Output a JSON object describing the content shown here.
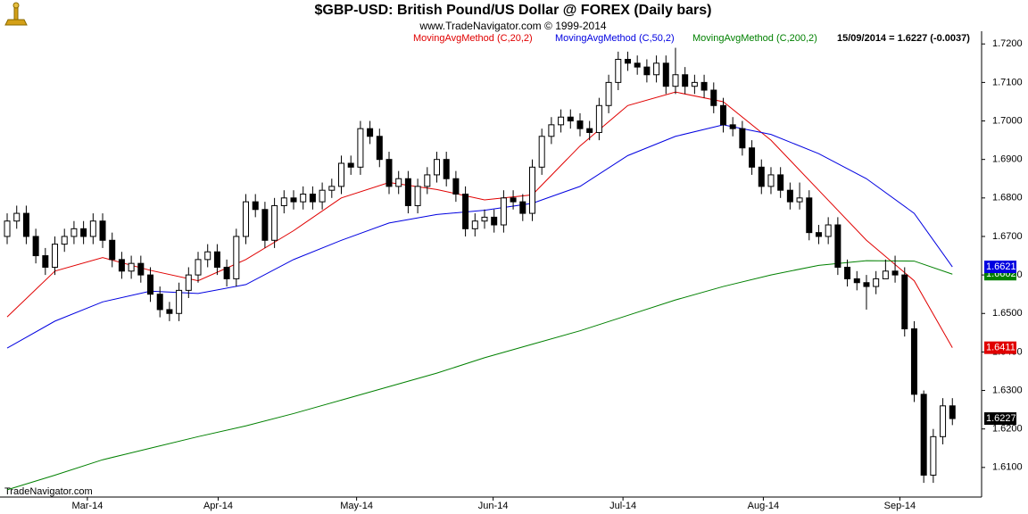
{
  "chart_data": {
    "type": "candlestick",
    "title": "$GBP-USD:  British Pound/US Dollar @ FOREX  (Daily bars)",
    "subtitle": "www.TradeNavigator.com © 1999-2014",
    "last_bar": "15/09/2014 = 1.6227 (-0.0037)",
    "footer": "TradeNavigator.com",
    "up_color": "#ffffff",
    "down_color": "#000000",
    "ylim": [
      1.6044,
      1.7233
    ],
    "yticks": [
      {
        "value": 1.61,
        "label": "1.6100"
      },
      {
        "value": 1.62,
        "label": "1.6200"
      },
      {
        "value": 1.63,
        "label": "1.6300"
      },
      {
        "value": 1.64,
        "label": "1.6400"
      },
      {
        "value": 1.65,
        "label": "1.6500"
      },
      {
        "value": 1.66,
        "label": "1.6600"
      },
      {
        "value": 1.67,
        "label": "1.6700"
      },
      {
        "value": 1.68,
        "label": "1.6800"
      },
      {
        "value": 1.69,
        "label": "1.6900"
      },
      {
        "value": 1.7,
        "label": "1.7000"
      },
      {
        "value": 1.71,
        "label": "1.7100"
      },
      {
        "value": 1.72,
        "label": "1.7200"
      }
    ],
    "xlim": [
      -0.75,
      102.06
    ],
    "xticks": [
      {
        "value": 8.4,
        "label": "Mar-14"
      },
      {
        "value": 22.1,
        "label": "Apr-14"
      },
      {
        "value": 36.6,
        "label": "May-14"
      },
      {
        "value": 50.9,
        "label": "Jun-14"
      },
      {
        "value": 64.5,
        "label": "Jul-14"
      },
      {
        "value": 79.2,
        "label": "Aug-14"
      },
      {
        "value": 93.5,
        "label": "Sep-14"
      }
    ],
    "open": [
      1.67,
      1.674,
      1.676,
      1.67,
      1.665,
      1.662,
      1.668,
      1.67,
      1.672,
      1.67,
      1.674,
      1.669,
      1.664,
      1.661,
      1.663,
      1.66,
      1.655,
      1.651,
      1.65,
      1.656,
      1.66,
      1.664,
      1.666,
      1.662,
      1.659,
      1.67,
      1.679,
      1.677,
      1.669,
      1.678,
      1.68,
      1.679,
      1.681,
      1.679,
      1.682,
      1.683,
      1.689,
      1.688,
      1.698,
      1.696,
      1.69,
      1.683,
      1.685,
      1.678,
      1.683,
      1.686,
      1.69,
      1.685,
      1.681,
      1.672,
      1.674,
      1.675,
      1.673,
      1.68,
      1.679,
      1.676,
      1.688,
      1.696,
      1.699,
      1.701,
      1.7,
      1.698,
      1.697,
      1.704,
      1.71,
      1.716,
      1.715,
      1.714,
      1.712,
      1.715,
      1.709,
      1.712,
      1.709,
      1.71,
      1.708,
      1.704,
      1.699,
      1.698,
      1.693,
      1.688,
      1.683,
      1.686,
      1.682,
      1.679,
      1.68,
      1.671,
      1.67,
      1.673,
      1.662,
      1.659,
      1.658,
      1.657,
      1.659,
      1.661,
      1.66,
      1.646,
      1.629,
      1.608,
      1.618,
      1.626
    ],
    "high": [
      1.676,
      1.678,
      1.678,
      1.672,
      1.667,
      1.67,
      1.672,
      1.674,
      1.674,
      1.676,
      1.676,
      1.671,
      1.666,
      1.665,
      1.665,
      1.662,
      1.657,
      1.653,
      1.658,
      1.662,
      1.666,
      1.668,
      1.668,
      1.664,
      1.672,
      1.681,
      1.681,
      1.679,
      1.68,
      1.682,
      1.682,
      1.683,
      1.683,
      1.684,
      1.685,
      1.691,
      1.691,
      1.7,
      1.7,
      1.698,
      1.692,
      1.687,
      1.687,
      1.685,
      1.688,
      1.692,
      1.692,
      1.687,
      1.683,
      1.676,
      1.677,
      1.677,
      1.682,
      1.682,
      1.681,
      1.69,
      1.698,
      1.701,
      1.703,
      1.703,
      1.702,
      1.7,
      1.706,
      1.712,
      1.718,
      1.718,
      1.717,
      1.716,
      1.717,
      1.717,
      1.719,
      1.714,
      1.712,
      1.712,
      1.71,
      1.706,
      1.701,
      1.7,
      1.695,
      1.69,
      1.688,
      1.688,
      1.684,
      1.684,
      1.682,
      1.673,
      1.675,
      1.675,
      1.664,
      1.661,
      1.66,
      1.661,
      1.664,
      1.665,
      1.662,
      1.648,
      1.63,
      1.62,
      1.628,
      1.628
    ],
    "low": [
      1.668,
      1.672,
      1.668,
      1.663,
      1.66,
      1.66,
      1.666,
      1.668,
      1.668,
      1.668,
      1.667,
      1.662,
      1.659,
      1.659,
      1.658,
      1.653,
      1.649,
      1.648,
      1.648,
      1.654,
      1.658,
      1.662,
      1.66,
      1.657,
      1.657,
      1.668,
      1.675,
      1.667,
      1.667,
      1.676,
      1.677,
      1.677,
      1.677,
      1.677,
      1.68,
      1.681,
      1.686,
      1.686,
      1.694,
      1.688,
      1.681,
      1.681,
      1.676,
      1.676,
      1.681,
      1.684,
      1.683,
      1.679,
      1.67,
      1.67,
      1.672,
      1.671,
      1.671,
      1.677,
      1.674,
      1.674,
      1.686,
      1.694,
      1.697,
      1.698,
      1.696,
      1.695,
      1.695,
      1.702,
      1.708,
      1.713,
      1.712,
      1.71,
      1.71,
      1.707,
      1.707,
      1.707,
      1.707,
      1.706,
      1.702,
      1.697,
      1.696,
      1.691,
      1.686,
      1.681,
      1.681,
      1.68,
      1.677,
      1.677,
      1.669,
      1.668,
      1.668,
      1.66,
      1.657,
      1.656,
      1.651,
      1.655,
      1.659,
      1.658,
      1.644,
      1.627,
      1.606,
      1.606,
      1.616,
      1.621
    ],
    "close": [
      1.674,
      1.676,
      1.67,
      1.665,
      1.662,
      1.668,
      1.67,
      1.672,
      1.67,
      1.674,
      1.669,
      1.664,
      1.661,
      1.663,
      1.66,
      1.655,
      1.651,
      1.65,
      1.656,
      1.66,
      1.664,
      1.666,
      1.662,
      1.659,
      1.67,
      1.679,
      1.677,
      1.669,
      1.678,
      1.68,
      1.679,
      1.681,
      1.679,
      1.682,
      1.683,
      1.689,
      1.688,
      1.698,
      1.696,
      1.69,
      1.683,
      1.685,
      1.678,
      1.683,
      1.686,
      1.69,
      1.685,
      1.681,
      1.672,
      1.674,
      1.675,
      1.673,
      1.68,
      1.679,
      1.676,
      1.688,
      1.696,
      1.699,
      1.701,
      1.7,
      1.698,
      1.697,
      1.704,
      1.71,
      1.716,
      1.715,
      1.714,
      1.712,
      1.715,
      1.709,
      1.712,
      1.709,
      1.71,
      1.708,
      1.704,
      1.699,
      1.698,
      1.693,
      1.688,
      1.683,
      1.686,
      1.682,
      1.679,
      1.68,
      1.671,
      1.67,
      1.673,
      1.662,
      1.659,
      1.658,
      1.657,
      1.659,
      1.661,
      1.66,
      1.646,
      1.629,
      1.608,
      1.618,
      1.626,
      1.6227
    ],
    "series": [
      {
        "name": "MovingAvgMethod (C,20,2)",
        "color": "#e00000",
        "x": [
          0,
          5,
          10,
          15,
          20,
          25,
          30,
          35,
          40,
          45,
          50,
          55,
          60,
          65,
          70,
          75,
          80,
          85,
          90,
          95,
          99
        ],
        "values": [
          1.6491,
          1.661,
          1.6645,
          1.6612,
          1.6585,
          1.664,
          1.6715,
          1.68,
          1.684,
          1.6822,
          1.6795,
          1.6808,
          1.6935,
          1.704,
          1.7075,
          1.705,
          1.695,
          1.682,
          1.669,
          1.6585,
          1.6411
        ]
      },
      {
        "name": "MovingAvgMethod (C,50,2)",
        "color": "#0000e0",
        "x": [
          0,
          5,
          10,
          15,
          20,
          25,
          30,
          35,
          40,
          45,
          50,
          55,
          60,
          65,
          70,
          75,
          80,
          85,
          90,
          95,
          99
        ],
        "values": [
          1.641,
          1.648,
          1.653,
          1.6558,
          1.6552,
          1.6575,
          1.664,
          1.669,
          1.6735,
          1.6757,
          1.6768,
          1.6786,
          1.683,
          1.691,
          1.696,
          1.699,
          1.6965,
          1.6915,
          1.685,
          1.676,
          1.6621
        ]
      },
      {
        "name": "MovingAvgMethod (C,200,2)",
        "color": "#008000",
        "x": [
          0,
          5,
          10,
          15,
          20,
          25,
          30,
          35,
          40,
          45,
          50,
          55,
          60,
          65,
          70,
          75,
          80,
          85,
          90,
          95,
          99
        ],
        "values": [
          1.6042,
          1.608,
          1.612,
          1.615,
          1.618,
          1.6208,
          1.624,
          1.6275,
          1.631,
          1.6345,
          1.6385,
          1.642,
          1.6455,
          1.6495,
          1.6535,
          1.657,
          1.66,
          1.6625,
          1.6637,
          1.6636,
          1.6602
        ]
      }
    ]
  }
}
